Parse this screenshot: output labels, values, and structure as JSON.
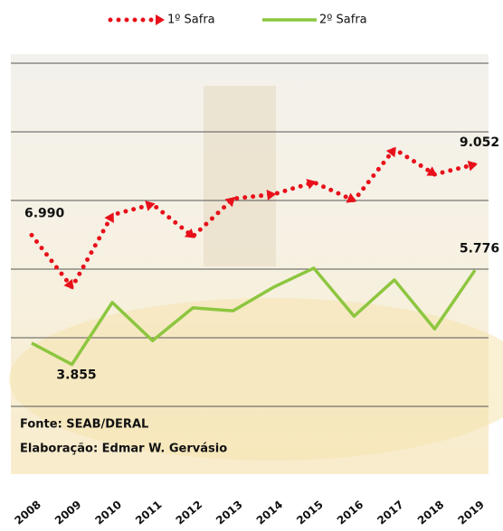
{
  "chart_data": {
    "type": "line",
    "categories": [
      "2008",
      "2009",
      "2010",
      "2011",
      "2012",
      "2013",
      "2014",
      "2015",
      "2016",
      "2017",
      "2018",
      "2019"
    ],
    "series": [
      {
        "name": "1º Safra",
        "color": "#e8101a",
        "axis": "y",
        "values": [
          6.99,
          5.47,
          7.58,
          7.89,
          6.95,
          8.05,
          8.18,
          8.53,
          8.0,
          9.5,
          8.76,
          9.052
        ],
        "value_labels": [
          "6.990",
          null,
          null,
          null,
          null,
          null,
          null,
          null,
          null,
          null,
          null,
          "9.052"
        ]
      },
      {
        "name": "2º Safra",
        "color": "#8cc63f",
        "axis": "y2",
        "values": [
          4.29,
          3.855,
          5.12,
          4.34,
          5.01,
          4.95,
          5.43,
          5.82,
          4.84,
          5.58,
          4.58,
          5.776
        ],
        "value_labels": [
          null,
          "3.855",
          null,
          null,
          null,
          null,
          null,
          null,
          null,
          null,
          null,
          "5.776"
        ]
      }
    ],
    "ylim": [
      2,
      12
    ],
    "yticks": [
      2,
      4,
      6,
      8,
      10,
      12
    ],
    "y2lim": [
      3,
      10
    ],
    "grid": true,
    "legend": "top",
    "annotations": [
      "Fonte: SEAB/DERAL",
      "Elaboração:  Edmar W. Gervásio"
    ]
  }
}
